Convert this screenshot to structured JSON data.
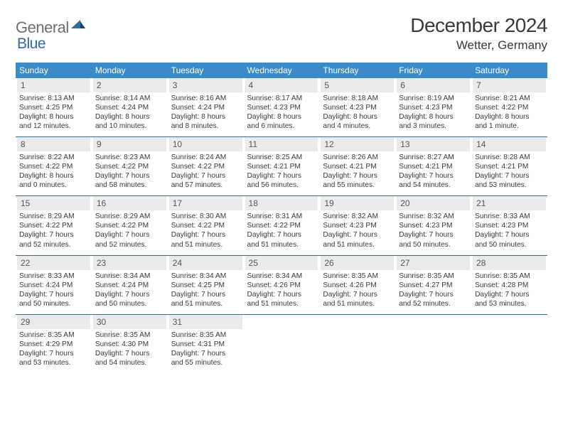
{
  "logo": {
    "general": "General",
    "blue": "Blue"
  },
  "title": "December 2024",
  "location": "Wetter, Germany",
  "colors": {
    "header_bg": "#3b8bc9",
    "row_divider": "#3b6a92",
    "daynum_bg": "#e9ebec",
    "logo_blue": "#2f6aa8"
  },
  "daynames": [
    "Sunday",
    "Monday",
    "Tuesday",
    "Wednesday",
    "Thursday",
    "Friday",
    "Saturday"
  ],
  "weeks": [
    [
      {
        "n": "1",
        "sr": "Sunrise: 8:13 AM",
        "ss": "Sunset: 4:25 PM",
        "d1": "Daylight: 8 hours",
        "d2": "and 12 minutes."
      },
      {
        "n": "2",
        "sr": "Sunrise: 8:14 AM",
        "ss": "Sunset: 4:24 PM",
        "d1": "Daylight: 8 hours",
        "d2": "and 10 minutes."
      },
      {
        "n": "3",
        "sr": "Sunrise: 8:16 AM",
        "ss": "Sunset: 4:24 PM",
        "d1": "Daylight: 8 hours",
        "d2": "and 8 minutes."
      },
      {
        "n": "4",
        "sr": "Sunrise: 8:17 AM",
        "ss": "Sunset: 4:23 PM",
        "d1": "Daylight: 8 hours",
        "d2": "and 6 minutes."
      },
      {
        "n": "5",
        "sr": "Sunrise: 8:18 AM",
        "ss": "Sunset: 4:23 PM",
        "d1": "Daylight: 8 hours",
        "d2": "and 4 minutes."
      },
      {
        "n": "6",
        "sr": "Sunrise: 8:19 AM",
        "ss": "Sunset: 4:23 PM",
        "d1": "Daylight: 8 hours",
        "d2": "and 3 minutes."
      },
      {
        "n": "7",
        "sr": "Sunrise: 8:21 AM",
        "ss": "Sunset: 4:22 PM",
        "d1": "Daylight: 8 hours",
        "d2": "and 1 minute."
      }
    ],
    [
      {
        "n": "8",
        "sr": "Sunrise: 8:22 AM",
        "ss": "Sunset: 4:22 PM",
        "d1": "Daylight: 8 hours",
        "d2": "and 0 minutes."
      },
      {
        "n": "9",
        "sr": "Sunrise: 8:23 AM",
        "ss": "Sunset: 4:22 PM",
        "d1": "Daylight: 7 hours",
        "d2": "and 58 minutes."
      },
      {
        "n": "10",
        "sr": "Sunrise: 8:24 AM",
        "ss": "Sunset: 4:22 PM",
        "d1": "Daylight: 7 hours",
        "d2": "and 57 minutes."
      },
      {
        "n": "11",
        "sr": "Sunrise: 8:25 AM",
        "ss": "Sunset: 4:21 PM",
        "d1": "Daylight: 7 hours",
        "d2": "and 56 minutes."
      },
      {
        "n": "12",
        "sr": "Sunrise: 8:26 AM",
        "ss": "Sunset: 4:21 PM",
        "d1": "Daylight: 7 hours",
        "d2": "and 55 minutes."
      },
      {
        "n": "13",
        "sr": "Sunrise: 8:27 AM",
        "ss": "Sunset: 4:21 PM",
        "d1": "Daylight: 7 hours",
        "d2": "and 54 minutes."
      },
      {
        "n": "14",
        "sr": "Sunrise: 8:28 AM",
        "ss": "Sunset: 4:21 PM",
        "d1": "Daylight: 7 hours",
        "d2": "and 53 minutes."
      }
    ],
    [
      {
        "n": "15",
        "sr": "Sunrise: 8:29 AM",
        "ss": "Sunset: 4:22 PM",
        "d1": "Daylight: 7 hours",
        "d2": "and 52 minutes."
      },
      {
        "n": "16",
        "sr": "Sunrise: 8:29 AM",
        "ss": "Sunset: 4:22 PM",
        "d1": "Daylight: 7 hours",
        "d2": "and 52 minutes."
      },
      {
        "n": "17",
        "sr": "Sunrise: 8:30 AM",
        "ss": "Sunset: 4:22 PM",
        "d1": "Daylight: 7 hours",
        "d2": "and 51 minutes."
      },
      {
        "n": "18",
        "sr": "Sunrise: 8:31 AM",
        "ss": "Sunset: 4:22 PM",
        "d1": "Daylight: 7 hours",
        "d2": "and 51 minutes."
      },
      {
        "n": "19",
        "sr": "Sunrise: 8:32 AM",
        "ss": "Sunset: 4:23 PM",
        "d1": "Daylight: 7 hours",
        "d2": "and 51 minutes."
      },
      {
        "n": "20",
        "sr": "Sunrise: 8:32 AM",
        "ss": "Sunset: 4:23 PM",
        "d1": "Daylight: 7 hours",
        "d2": "and 50 minutes."
      },
      {
        "n": "21",
        "sr": "Sunrise: 8:33 AM",
        "ss": "Sunset: 4:23 PM",
        "d1": "Daylight: 7 hours",
        "d2": "and 50 minutes."
      }
    ],
    [
      {
        "n": "22",
        "sr": "Sunrise: 8:33 AM",
        "ss": "Sunset: 4:24 PM",
        "d1": "Daylight: 7 hours",
        "d2": "and 50 minutes."
      },
      {
        "n": "23",
        "sr": "Sunrise: 8:34 AM",
        "ss": "Sunset: 4:24 PM",
        "d1": "Daylight: 7 hours",
        "d2": "and 50 minutes."
      },
      {
        "n": "24",
        "sr": "Sunrise: 8:34 AM",
        "ss": "Sunset: 4:25 PM",
        "d1": "Daylight: 7 hours",
        "d2": "and 51 minutes."
      },
      {
        "n": "25",
        "sr": "Sunrise: 8:34 AM",
        "ss": "Sunset: 4:26 PM",
        "d1": "Daylight: 7 hours",
        "d2": "and 51 minutes."
      },
      {
        "n": "26",
        "sr": "Sunrise: 8:35 AM",
        "ss": "Sunset: 4:26 PM",
        "d1": "Daylight: 7 hours",
        "d2": "and 51 minutes."
      },
      {
        "n": "27",
        "sr": "Sunrise: 8:35 AM",
        "ss": "Sunset: 4:27 PM",
        "d1": "Daylight: 7 hours",
        "d2": "and 52 minutes."
      },
      {
        "n": "28",
        "sr": "Sunrise: 8:35 AM",
        "ss": "Sunset: 4:28 PM",
        "d1": "Daylight: 7 hours",
        "d2": "and 53 minutes."
      }
    ],
    [
      {
        "n": "29",
        "sr": "Sunrise: 8:35 AM",
        "ss": "Sunset: 4:29 PM",
        "d1": "Daylight: 7 hours",
        "d2": "and 53 minutes."
      },
      {
        "n": "30",
        "sr": "Sunrise: 8:35 AM",
        "ss": "Sunset: 4:30 PM",
        "d1": "Daylight: 7 hours",
        "d2": "and 54 minutes."
      },
      {
        "n": "31",
        "sr": "Sunrise: 8:35 AM",
        "ss": "Sunset: 4:31 PM",
        "d1": "Daylight: 7 hours",
        "d2": "and 55 minutes."
      },
      null,
      null,
      null,
      null
    ]
  ]
}
